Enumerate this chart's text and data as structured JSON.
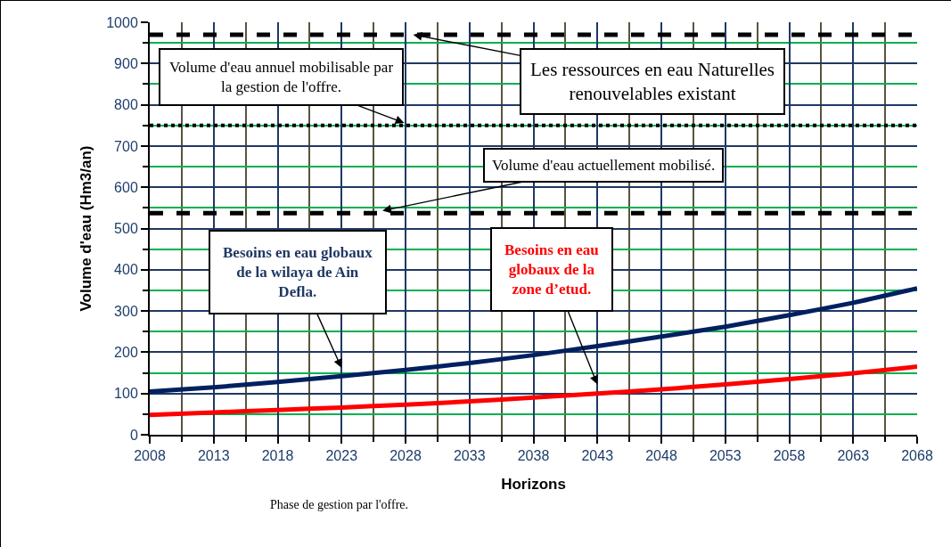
{
  "chart_data": {
    "type": "line",
    "xlabel": "Horizons",
    "ylabel": "Volume d'eau (Hm3/an)",
    "x": [
      2008,
      2013,
      2018,
      2023,
      2028,
      2033,
      2038,
      2043,
      2048,
      2053,
      2058,
      2063,
      2068
    ],
    "series": [
      {
        "name": "Besoins en eau globaux de la wilaya de Ain Defla.",
        "color": "#002060",
        "values": [
          105,
          115,
          128,
          142,
          157,
          174,
          193,
          215,
          238,
          262,
          290,
          320,
          355
        ]
      },
      {
        "name": "Besoins en eau globaux de la zone d’etud.",
        "color": "#ff0000",
        "values": [
          48,
          54,
          60,
          66,
          73,
          81,
          90,
          100,
          110,
          122,
          135,
          149,
          165
        ]
      }
    ],
    "xlim": [
      2008,
      2068
    ],
    "xticks": [
      2008,
      {
        "value": 2010.5,
        "label": null
      },
      2013,
      {
        "value": 2015.5,
        "label": null
      },
      2018,
      {
        "value": 2020.5,
        "label": null
      },
      2023,
      {
        "value": 2025.5,
        "label": null
      },
      2028,
      {
        "value": 2030.5,
        "label": null
      },
      2033,
      {
        "value": 2035.5,
        "label": null
      },
      2038,
      {
        "value": 2040.5,
        "label": null
      },
      2043,
      {
        "value": 2045.5,
        "label": null
      },
      2048,
      {
        "value": 2050.5,
        "label": null
      },
      2053,
      {
        "value": 2055.5,
        "label": null
      },
      2058,
      {
        "value": 2060.5,
        "label": null
      },
      2063,
      {
        "value": 2065.5,
        "label": null
      },
      2068
    ],
    "ylim": [
      0,
      1000
    ],
    "yticks": [
      0,
      {
        "value": 50,
        "label": null
      },
      100,
      {
        "value": 150,
        "label": null
      },
      200,
      {
        "value": 250,
        "label": null
      },
      300,
      {
        "value": 350,
        "label": null
      },
      400,
      {
        "value": 450,
        "label": null
      },
      500,
      {
        "value": 550,
        "label": null
      },
      600,
      {
        "value": 650,
        "label": null
      },
      700,
      {
        "value": 750,
        "label": null
      },
      800,
      {
        "value": 850,
        "label": null
      },
      900,
      {
        "value": 950,
        "label": null
      },
      1000
    ],
    "ref_lines": [
      {
        "axis": "y",
        "value": 970,
        "label": "Les ressources en eau Naturelles renouvelables existant",
        "color": "#000000",
        "line_style": "dashed"
      },
      {
        "axis": "y",
        "value": 750,
        "label": "Volume d'eau annuel mobilisable par la gestion de l'offre.",
        "color": "#000000",
        "line_style": "dotted"
      },
      {
        "axis": "y",
        "value": 537,
        "label": "Volume d'eau actuellement mobilisé.",
        "color": "#000000",
        "line_style": "dashed"
      }
    ],
    "annotations": [
      "Phase de gestion par l'offre."
    ],
    "grid": true,
    "legend": false,
    "marker": "none",
    "line_style": "solid"
  }
}
